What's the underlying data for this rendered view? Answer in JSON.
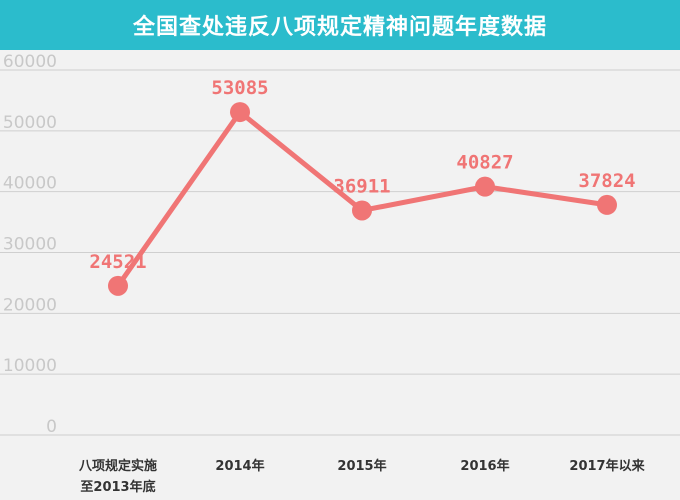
{
  "header": {
    "title": "全国查处违反八项规定精神问题年度数据",
    "background_color": "#2bbccc"
  },
  "chart_data": {
    "type": "line",
    "title": "全国查处违反八项规定精神问题年度数据",
    "xlabel": "",
    "ylabel": "",
    "categories": [
      [
        "八项规定实施",
        "至2013年底"
      ],
      [
        "2014年"
      ],
      [
        "2015年"
      ],
      [
        "2016年"
      ],
      [
        "2017年以来"
      ]
    ],
    "series": [
      {
        "values": [
          24521,
          53085,
          36911,
          40827,
          37824
        ],
        "color": "#f07575"
      }
    ],
    "ylim": [
      0,
      60000
    ],
    "yticks": [
      0,
      10000,
      20000,
      30000,
      40000,
      50000,
      60000
    ],
    "grid": true,
    "data_labels": true,
    "legend": "none"
  }
}
